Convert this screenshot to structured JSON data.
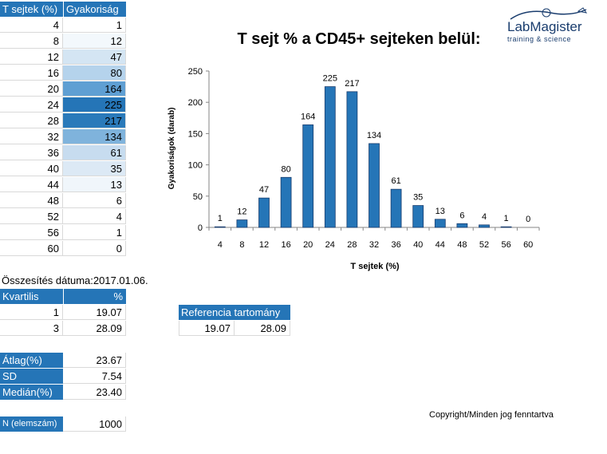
{
  "freq_table": {
    "headers": [
      "T sejtek (%)",
      "Gyakoriság"
    ],
    "rows": [
      {
        "x": "4",
        "f": "1",
        "color": "#ffffff"
      },
      {
        "x": "8",
        "f": "12",
        "color": "#f3f8fc"
      },
      {
        "x": "12",
        "f": "47",
        "color": "#d4e5f3"
      },
      {
        "x": "16",
        "f": "80",
        "color": "#b5d3ec"
      },
      {
        "x": "20",
        "f": "164",
        "color": "#5f9fd3"
      },
      {
        "x": "24",
        "f": "225",
        "color": "#2575b7"
      },
      {
        "x": "28",
        "f": "217",
        "color": "#2a7aba"
      },
      {
        "x": "32",
        "f": "134",
        "color": "#7fb3dc"
      },
      {
        "x": "36",
        "f": "61",
        "color": "#c7dcef"
      },
      {
        "x": "40",
        "f": "35",
        "color": "#dce9f5"
      },
      {
        "x": "44",
        "f": "13",
        "color": "#f0f6fb"
      },
      {
        "x": "48",
        "f": "6",
        "color": "#ffffff"
      },
      {
        "x": "52",
        "f": "4",
        "color": "#ffffff"
      },
      {
        "x": "56",
        "f": "1",
        "color": "#ffffff"
      },
      {
        "x": "60",
        "f": "0",
        "color": "#ffffff"
      }
    ]
  },
  "summary_date": "Összesítés dátuma:2017.01.06.",
  "quartile_table": {
    "headers": [
      "Kvartilis",
      "%"
    ],
    "rows": [
      [
        "1",
        "19.07"
      ],
      [
        "3",
        "28.09"
      ]
    ]
  },
  "reference": {
    "header": "Referencia tartomány",
    "low": "19.07",
    "high": "28.09"
  },
  "stats": [
    {
      "label": "Átlag(%)",
      "value": "23.67"
    },
    {
      "label": "SD",
      "value": "7.54"
    },
    {
      "label": "Medián(%)",
      "value": "23.40"
    }
  ],
  "n": {
    "label": "N (elemszám)",
    "value": "1000"
  },
  "logo": {
    "name": "LabMagister",
    "tagline": "training & science"
  },
  "copyright": "Copyright/Minden jog fenntartva",
  "colors": {
    "header": "#2575b7",
    "bar": "#2575b7",
    "bar_border": "#1a3d6e"
  },
  "chart_data": {
    "type": "bar",
    "title": "T sejt % a CD45+ sejteken belül:",
    "xlabel": "T sejtek (%)",
    "ylabel": "Gyakoriságok (darab)",
    "categories": [
      "4",
      "8",
      "12",
      "16",
      "20",
      "24",
      "28",
      "32",
      "36",
      "40",
      "44",
      "48",
      "52",
      "56",
      "60"
    ],
    "values": [
      1,
      12,
      47,
      80,
      164,
      225,
      217,
      134,
      61,
      35,
      13,
      6,
      4,
      1,
      0
    ],
    "ylim": [
      0,
      250
    ],
    "yticks": [
      0,
      50,
      100,
      150,
      200,
      250
    ],
    "grid": false,
    "data_labels": true
  }
}
